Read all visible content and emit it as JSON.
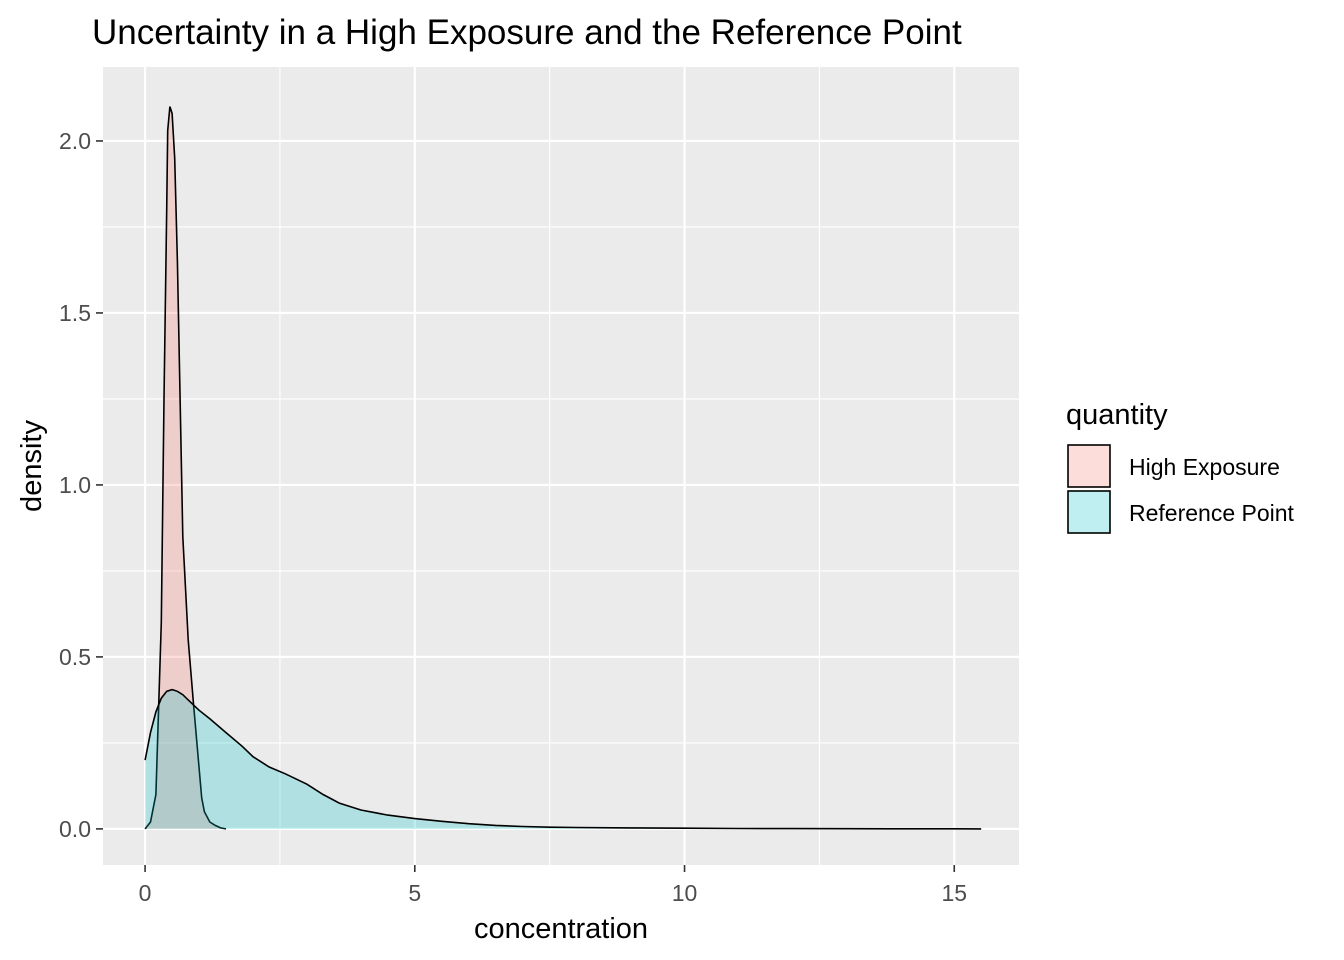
{
  "chart_data": {
    "type": "area",
    "title": "Uncertainty in a High Exposure and the Reference Point",
    "xlabel": "concentration",
    "ylabel": "density",
    "xlim": [
      -0.78,
      16.2
    ],
    "ylim": [
      -0.105,
      2.215
    ],
    "x_ticks": [
      0,
      5,
      10,
      15
    ],
    "x_tick_labels": [
      "0",
      "5",
      "10",
      "15"
    ],
    "y_ticks": [
      0.0,
      0.5,
      1.0,
      1.5,
      2.0
    ],
    "y_tick_labels": [
      "0.0",
      "0.5",
      "1.0",
      "1.5",
      "2.0"
    ],
    "grid": true,
    "legend": {
      "title": "quantity",
      "position": "right"
    },
    "series": [
      {
        "name": "High Exposure",
        "fill": "#F8766D",
        "fill_opacity": 0.25,
        "x": [
          0.0,
          0.1,
          0.2,
          0.3,
          0.35,
          0.4,
          0.42,
          0.46,
          0.5,
          0.55,
          0.6,
          0.65,
          0.7,
          0.8,
          0.9,
          1.0,
          1.05,
          1.1,
          1.2,
          1.3,
          1.4,
          1.5
        ],
        "y": [
          0.0,
          0.02,
          0.1,
          0.6,
          1.25,
          1.8,
          2.03,
          2.1,
          2.08,
          1.95,
          1.65,
          1.25,
          0.85,
          0.55,
          0.36,
          0.18,
          0.09,
          0.05,
          0.02,
          0.01,
          0.003,
          0.0
        ]
      },
      {
        "name": "Reference Point",
        "fill": "#00BFC4",
        "fill_opacity": 0.25,
        "x": [
          0.0,
          0.1,
          0.2,
          0.3,
          0.4,
          0.5,
          0.6,
          0.7,
          0.8,
          0.9,
          1.0,
          1.2,
          1.5,
          1.8,
          2.0,
          2.3,
          2.6,
          3.0,
          3.3,
          3.6,
          4.0,
          4.5,
          5.0,
          5.5,
          6.0,
          6.5,
          7.0,
          7.5,
          8.0,
          9.0,
          10.0,
          11.0,
          12.0,
          13.0,
          14.0,
          15.0,
          15.5
        ],
        "y": [
          0.2,
          0.28,
          0.34,
          0.38,
          0.4,
          0.405,
          0.4,
          0.39,
          0.375,
          0.36,
          0.345,
          0.32,
          0.28,
          0.24,
          0.21,
          0.18,
          0.16,
          0.13,
          0.1,
          0.075,
          0.055,
          0.04,
          0.03,
          0.022,
          0.015,
          0.01,
          0.007,
          0.005,
          0.004,
          0.003,
          0.002,
          0.001,
          0.0008,
          0.0005,
          0.0003,
          0.0001,
          0.0
        ]
      }
    ]
  }
}
